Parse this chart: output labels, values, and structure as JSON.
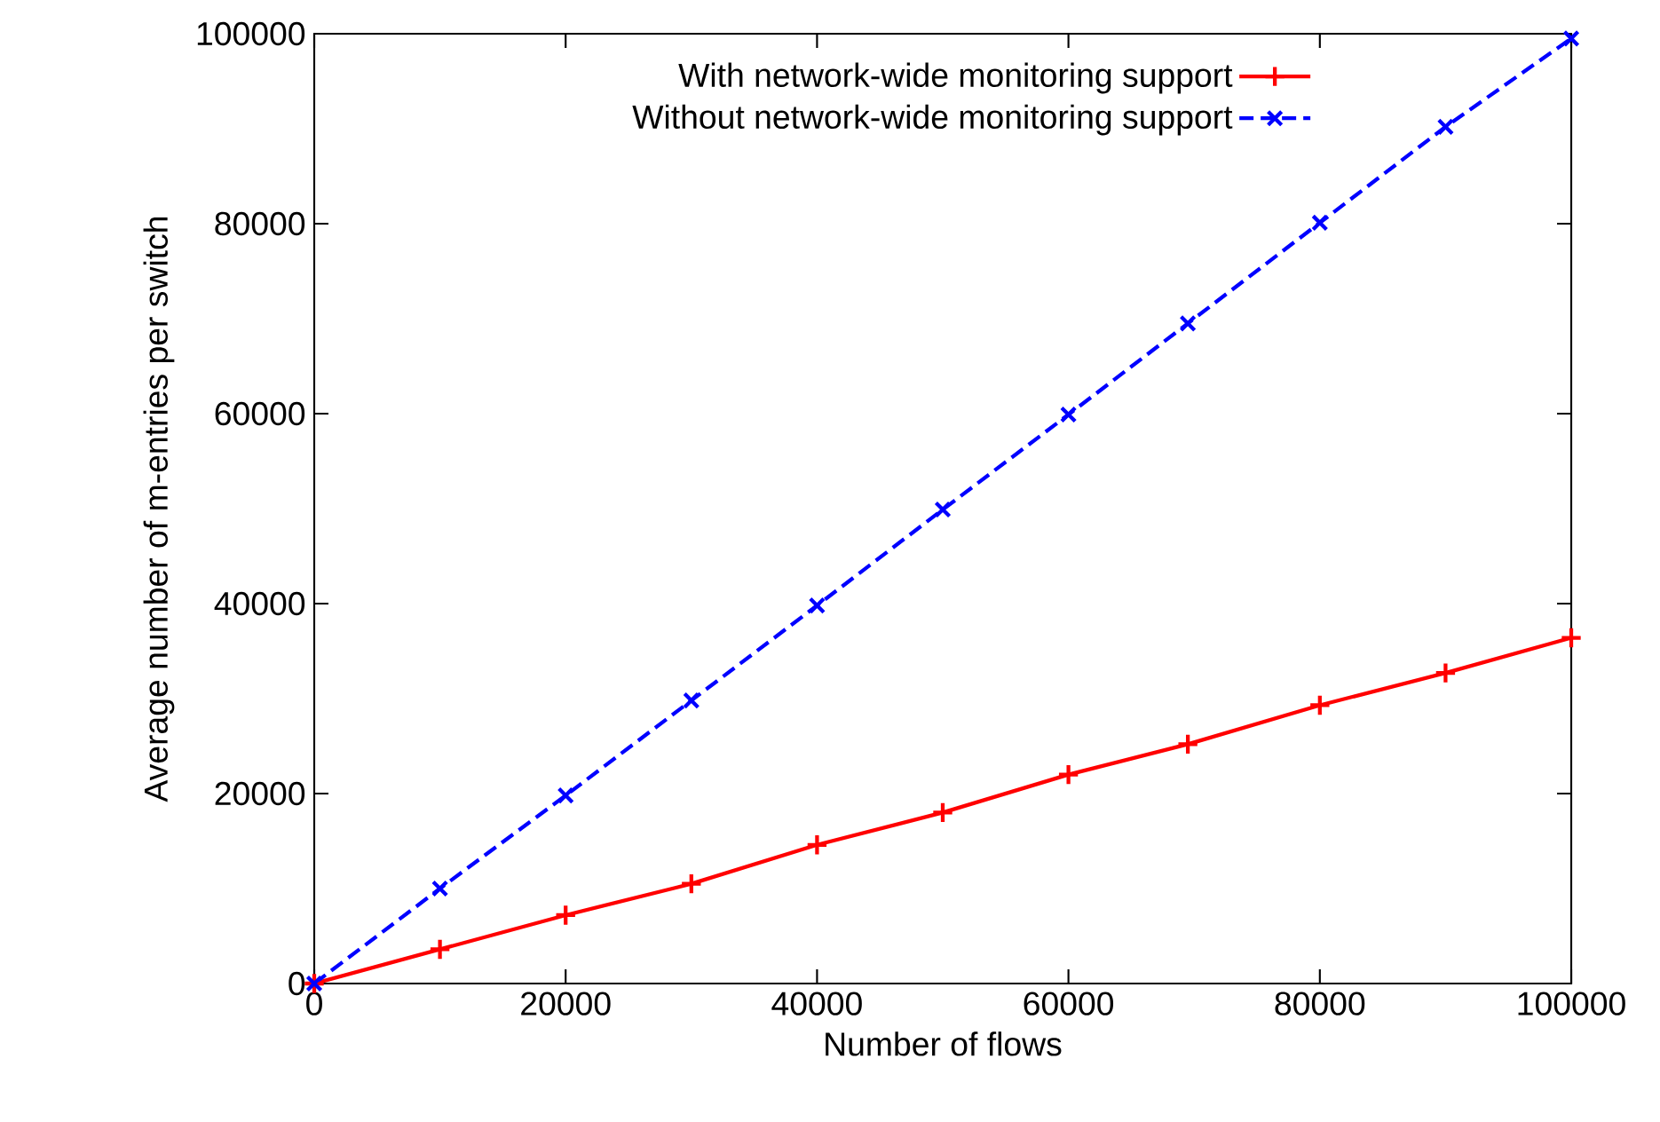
{
  "chart_data": {
    "type": "line",
    "xlabel": "Number of flows",
    "ylabel": "Average number of m-entries per switch",
    "x": [
      0,
      10000,
      20000,
      30000,
      40000,
      50000,
      60000,
      69500,
      80000,
      90000,
      100000
    ],
    "series": [
      {
        "name": "With network-wide monitoring support",
        "color": "#ff0000",
        "marker": "plus",
        "line_style": "solid",
        "values": [
          0,
          3600,
          7200,
          10500,
          14600,
          18000,
          22000,
          25200,
          29300,
          32700,
          36400
        ]
      },
      {
        "name": "Without network-wide monitoring support",
        "color": "#0000ff",
        "marker": "cross",
        "line_style": "dashed",
        "values": [
          0,
          10000,
          19800,
          29800,
          39800,
          49900,
          59900,
          69500,
          80100,
          90200,
          99500
        ]
      }
    ],
    "xlim": [
      0,
      100000
    ],
    "ylim": [
      0,
      100000
    ],
    "xticks": [
      0,
      20000,
      40000,
      60000,
      80000,
      100000
    ],
    "yticks": [
      0,
      20000,
      40000,
      60000,
      80000,
      100000
    ],
    "grid": false,
    "legend": "top right"
  }
}
